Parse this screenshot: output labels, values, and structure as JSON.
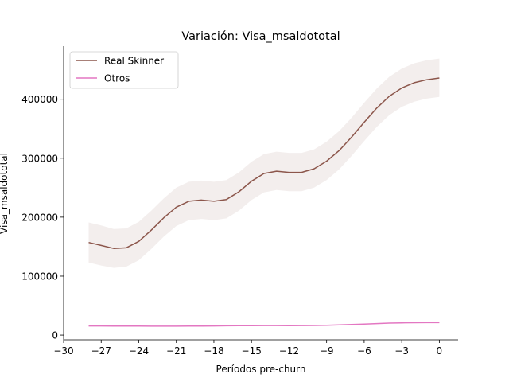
{
  "chart_data": {
    "type": "line",
    "title": "Variación: Visa_msaldototal",
    "xlabel": "Períodos pre-churn",
    "ylabel": "Visa_msaldototal",
    "xlim": [
      -30,
      1.5
    ],
    "ylim": [
      -8000,
      490000
    ],
    "xticks": [
      -30,
      -27,
      -24,
      -21,
      -18,
      -15,
      -12,
      -9,
      -6,
      -3,
      0
    ],
    "xtick_labels": [
      "−30",
      "−27",
      "−24",
      "−21",
      "−18",
      "−15",
      "−12",
      "−9",
      "−6",
      "−3",
      "0"
    ],
    "yticks": [
      0,
      100000,
      200000,
      300000,
      400000
    ],
    "ytick_labels": [
      "0",
      "100000",
      "200000",
      "300000",
      "400000"
    ],
    "grid": false,
    "legend": "top-left",
    "x": [
      -28,
      -27,
      -26,
      -25,
      -24,
      -23,
      -22,
      -21,
      -20,
      -19,
      -18,
      -17,
      -16,
      -15,
      -14,
      -13,
      -12,
      -11,
      -10,
      -9,
      -8,
      -7,
      -6,
      -5,
      -4,
      -3,
      -2,
      -1,
      0
    ],
    "series": [
      {
        "name": "Real Skinner",
        "color": "#8c564b",
        "values": [
          157000,
          152000,
          147000,
          148000,
          159000,
          178000,
          199000,
          217000,
          227000,
          229000,
          227000,
          230000,
          243000,
          261000,
          274000,
          278000,
          276000,
          276000,
          282000,
          295000,
          313000,
          336000,
          361000,
          385000,
          405000,
          419000,
          428000,
          433000,
          436000
        ],
        "ci_lower": [
          123000,
          118000,
          114000,
          116000,
          127000,
          146000,
          167000,
          185000,
          195000,
          197000,
          195000,
          198000,
          211000,
          229000,
          242000,
          246000,
          244000,
          244000,
          250000,
          263000,
          281000,
          304000,
          329000,
          353000,
          373000,
          387000,
          396000,
          401000,
          404000
        ],
        "ci_upper": [
          191000,
          186000,
          180000,
          181000,
          192000,
          211000,
          232000,
          250000,
          260000,
          262000,
          260000,
          263000,
          276000,
          294000,
          307000,
          311000,
          309000,
          309000,
          315000,
          328000,
          346000,
          369000,
          394000,
          418000,
          438000,
          452000,
          461000,
          466000,
          469000
        ]
      },
      {
        "name": "Otros",
        "color": "#e377c2",
        "values": [
          15500,
          15500,
          15400,
          15300,
          15200,
          15100,
          15100,
          15100,
          15200,
          15300,
          15500,
          15700,
          15900,
          16000,
          16100,
          16100,
          16000,
          16100,
          16300,
          16700,
          17300,
          18000,
          18700,
          19500,
          20300,
          20800,
          21000,
          21100,
          21200
        ]
      }
    ]
  }
}
